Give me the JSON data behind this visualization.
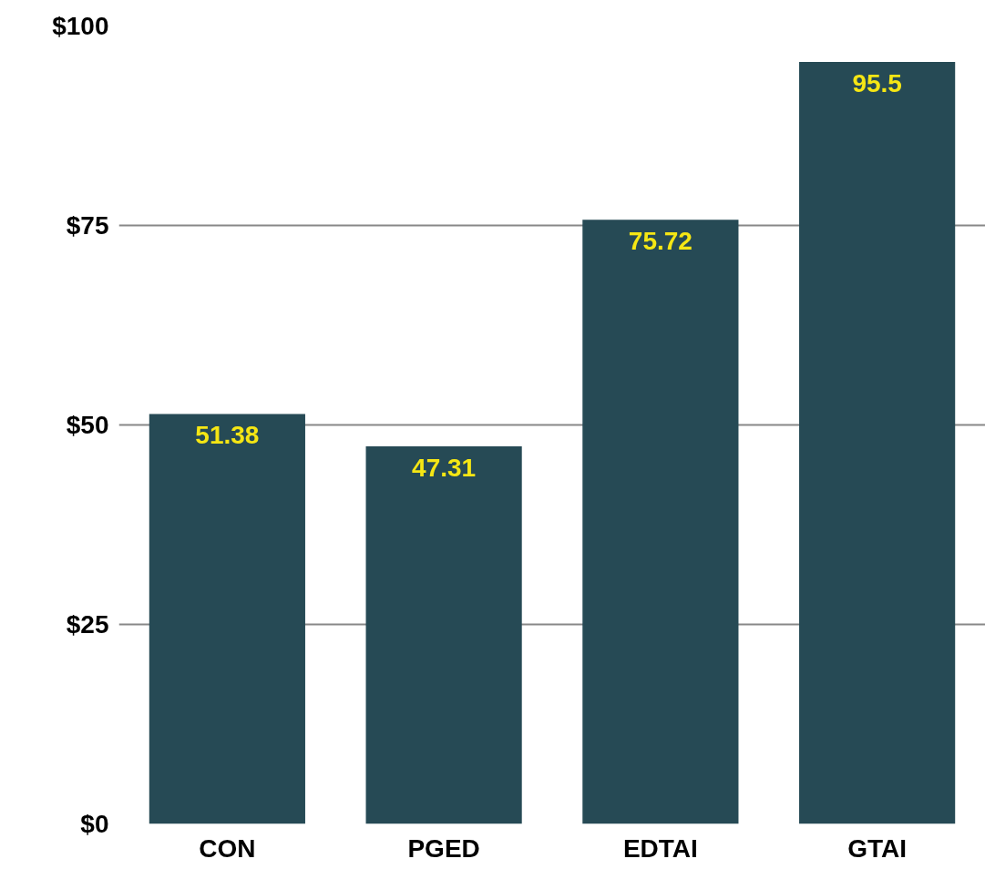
{
  "chart_data": {
    "type": "bar",
    "categories": [
      "CON",
      "PGED",
      "EDTAI",
      "GTAI"
    ],
    "values": [
      51.38,
      47.31,
      75.72,
      95.5
    ],
    "color": "#264a55",
    "ylim": [
      0,
      100
    ],
    "yticks": [
      {
        "value": 0,
        "label": "$0"
      },
      {
        "value": 25,
        "label": "$25"
      },
      {
        "value": 50,
        "label": "$50"
      },
      {
        "value": 75,
        "label": "$75"
      },
      {
        "value": 100,
        "label": "$100"
      }
    ],
    "grid": "y",
    "data_labels": true
  }
}
